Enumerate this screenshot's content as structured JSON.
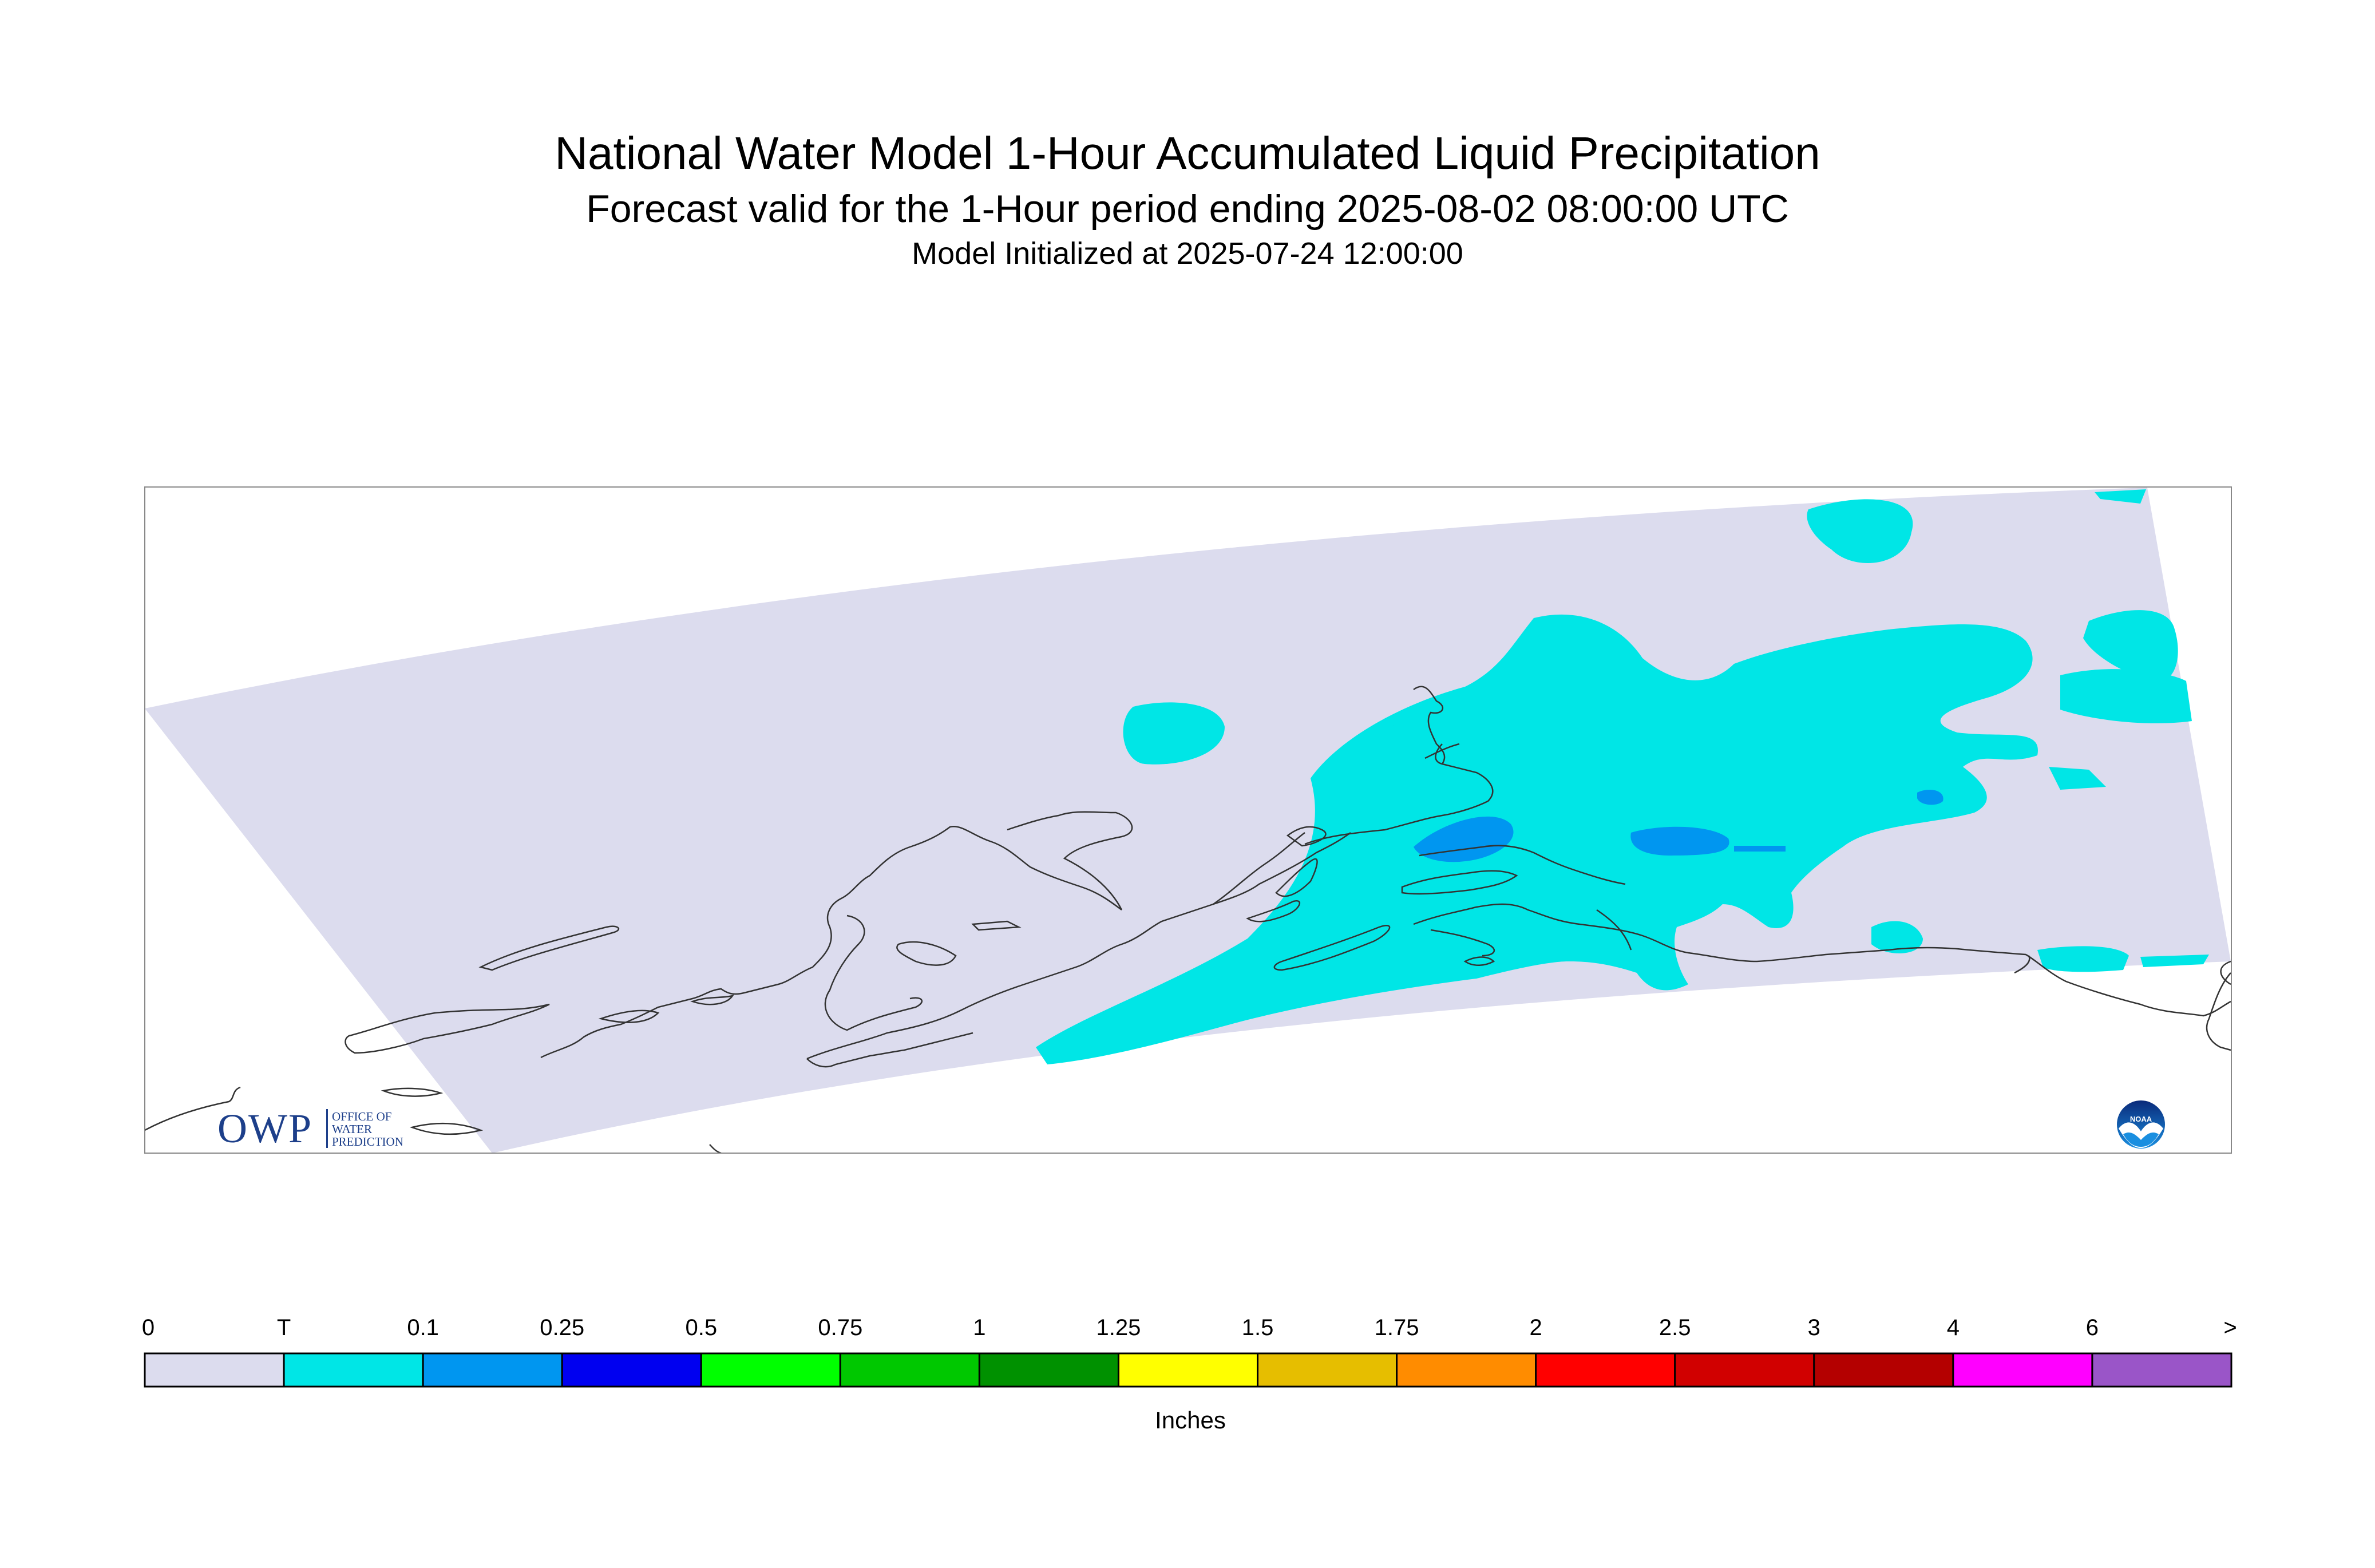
{
  "title": {
    "main": "National Water Model 1-Hour Accumulated Liquid Precipitation",
    "sub": "Forecast valid for the 1-Hour period ending 2025-08-02 08:00:00 UTC",
    "init": "Model Initialized at 2025-07-24 12:00:00"
  },
  "legend": {
    "units": "Inches",
    "labels": [
      "0",
      "T",
      "0.1",
      "0.25",
      "0.5",
      "0.75",
      "1",
      "1.25",
      "1.5",
      "1.75",
      "2",
      "2.5",
      "3",
      "4",
      "6",
      ">"
    ],
    "colors": [
      "#dcdcee",
      "#00e6e6",
      "#0096f0",
      "#0000f0",
      "#00ff00",
      "#00c800",
      "#009100",
      "#ffff00",
      "#e6be00",
      "#ff8c00",
      "#ff0000",
      "#d10000",
      "#b40000",
      "#ff00ff",
      "#9a55c8"
    ]
  },
  "map": {
    "background_color": "#dcdcee",
    "precip_light_color": "#00e6e6",
    "precip_moderate_color": "#0096f0",
    "coastline_color": "#333333"
  },
  "logos": {
    "owp": {
      "letters": "OWP",
      "line1": "OFFICE OF",
      "line2": "WATER",
      "line3": "PREDICTION"
    },
    "noaa": {
      "text": "NOAA"
    }
  }
}
